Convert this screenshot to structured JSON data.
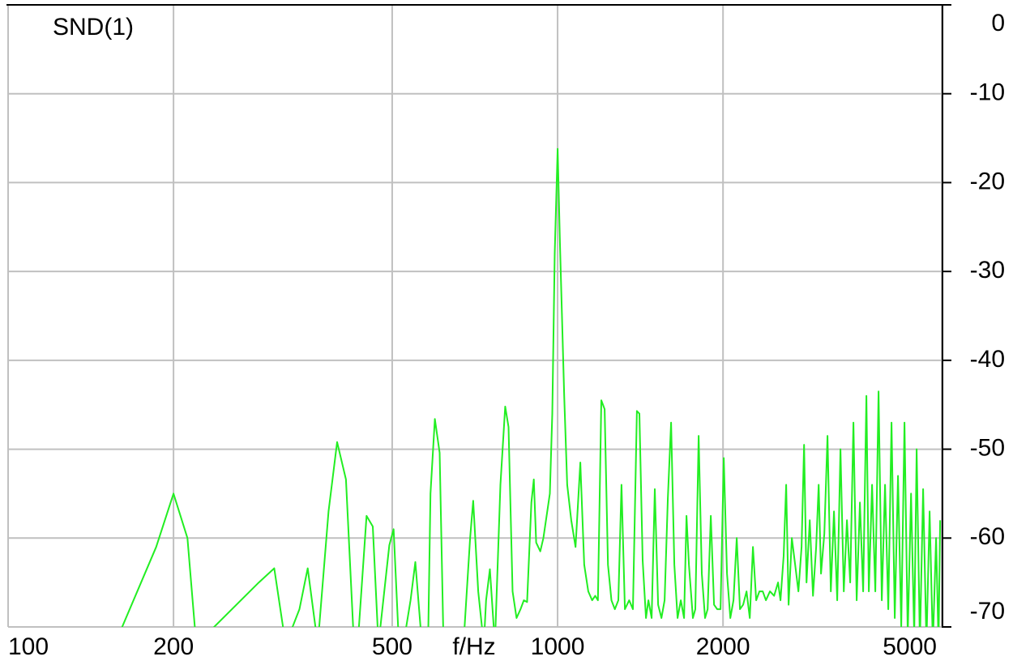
{
  "chart_data": {
    "type": "line",
    "x_label": "f/Hz",
    "xscale": "log",
    "xlim": [
      100,
      5000
    ],
    "xticks": [
      100,
      200,
      500,
      1000,
      2000,
      5000
    ],
    "ylim": [
      -70,
      0
    ],
    "yticks": [
      0,
      -10,
      -20,
      -30,
      -40,
      -50,
      -60,
      -70
    ],
    "grid": true,
    "x": [
      100,
      105,
      143,
      153,
      155,
      186,
      200,
      212,
      220,
      286,
      305,
      320,
      339,
      351,
      366,
      383,
      397,
      412,
      426,
      435,
      449,
      461,
      472,
      494,
      503,
      513,
      524,
      540,
      551,
      563,
      581,
      587,
      598,
      610,
      620,
      642,
      658,
      674,
      693,
      702,
      717,
      734,
      741,
      753,
      769,
      787,
      803,
      814,
      828,
      842,
      856,
      868,
      880,
      896,
      905,
      914,
      930,
      942,
      955,
      968,
      978,
      988,
      1000,
      1010,
      1028,
      1041,
      1059,
      1078,
      1100,
      1118,
      1137,
      1156,
      1171,
      1184,
      1201,
      1218,
      1235,
      1253,
      1271,
      1290,
      1307,
      1326,
      1350,
      1371,
      1394,
      1409,
      1428,
      1448,
      1463,
      1483,
      1503,
      1524,
      1545,
      1566,
      1587,
      1609,
      1631,
      1653,
      1676,
      1699,
      1716,
      1734,
      1763,
      1781,
      1806,
      1830,
      1855,
      1875,
      1900,
      1926,
      1952,
      1979,
      2006,
      2034,
      2062,
      2090,
      2118,
      2147,
      2176,
      2207,
      2237,
      2267,
      2298,
      2330,
      2362,
      2394,
      2435,
      2477,
      2519,
      2545,
      2579,
      2606,
      2633,
      2669,
      2706,
      2743,
      2780,
      2809,
      2838,
      2877,
      2916,
      2955,
      2986,
      3016,
      3058,
      3099,
      3142,
      3184,
      3228,
      3272,
      3317,
      3362,
      3408,
      3454,
      3502,
      3549,
      3598,
      3647,
      3685,
      3735,
      3786,
      3838,
      3890,
      3944,
      3998,
      4052,
      4108,
      4164,
      4221,
      4279,
      4337,
      4397,
      4457,
      4502,
      4564,
      4626,
      4690,
      4753,
      4818,
      4884,
      4934,
      4968
    ],
    "series": [
      {
        "name": "SND(1)",
        "color": "#22ee22",
        "values": [
          -71.5,
          -71.2,
          -72,
          -70.3,
          -72.5,
          -61,
          -55,
          -60,
          -72,
          -65,
          -63.4,
          -72,
          -68,
          -63.4,
          -72,
          -57,
          -49.2,
          -53.4,
          -72,
          -70,
          -57.5,
          -58.7,
          -72,
          -60.8,
          -59,
          -70.5,
          -72,
          -67,
          -62.7,
          -70,
          -72,
          -55,
          -46.6,
          -50.4,
          -72,
          -70.5,
          -71,
          -72,
          -60,
          -55.8,
          -66,
          -72,
          -67,
          -63.5,
          -72,
          -54,
          -45.2,
          -47.5,
          -66,
          -69,
          -68,
          -67,
          -67.2,
          -56,
          -53.4,
          -60.5,
          -61.5,
          -60,
          -57.5,
          -55,
          -46,
          -28,
          -16.2,
          -27,
          -44,
          -54,
          -58,
          -61,
          -51.5,
          -63,
          -66,
          -67,
          -66.5,
          -67,
          -44.5,
          -45.5,
          -63,
          -67,
          -68,
          -67,
          -54,
          -68,
          -67,
          -68,
          -45.7,
          -46,
          -62.5,
          -69,
          -67,
          -69,
          -54.5,
          -67.5,
          -69,
          -67,
          -55.5,
          -47,
          -63,
          -69,
          -67,
          -69,
          -57.5,
          -63,
          -69,
          -68,
          -48.5,
          -64,
          -69,
          -68,
          -57.5,
          -67.5,
          -68,
          -68,
          -51,
          -64,
          -69,
          -67,
          -60,
          -68,
          -67.5,
          -66,
          -69,
          -61,
          -67,
          -66,
          -66,
          -67,
          -66,
          -66.5,
          -65,
          -67,
          -62,
          -54,
          -67.5,
          -60,
          -63,
          -66,
          -61,
          -49.5,
          -65,
          -58,
          -66.5,
          -61,
          -54,
          -64,
          -59.5,
          -48.5,
          -66,
          -57,
          -67,
          -50,
          -66,
          -58,
          -65,
          -47,
          -67,
          -56,
          -66,
          -44,
          -66,
          -54,
          -66,
          -43.5,
          -67,
          -54,
          -68,
          -47,
          -69,
          -53,
          -70,
          -47,
          -71,
          -55,
          -71,
          -50,
          -72,
          -54.5,
          -72,
          -57,
          -72,
          -60,
          -72,
          -58
        ]
      }
    ]
  }
}
